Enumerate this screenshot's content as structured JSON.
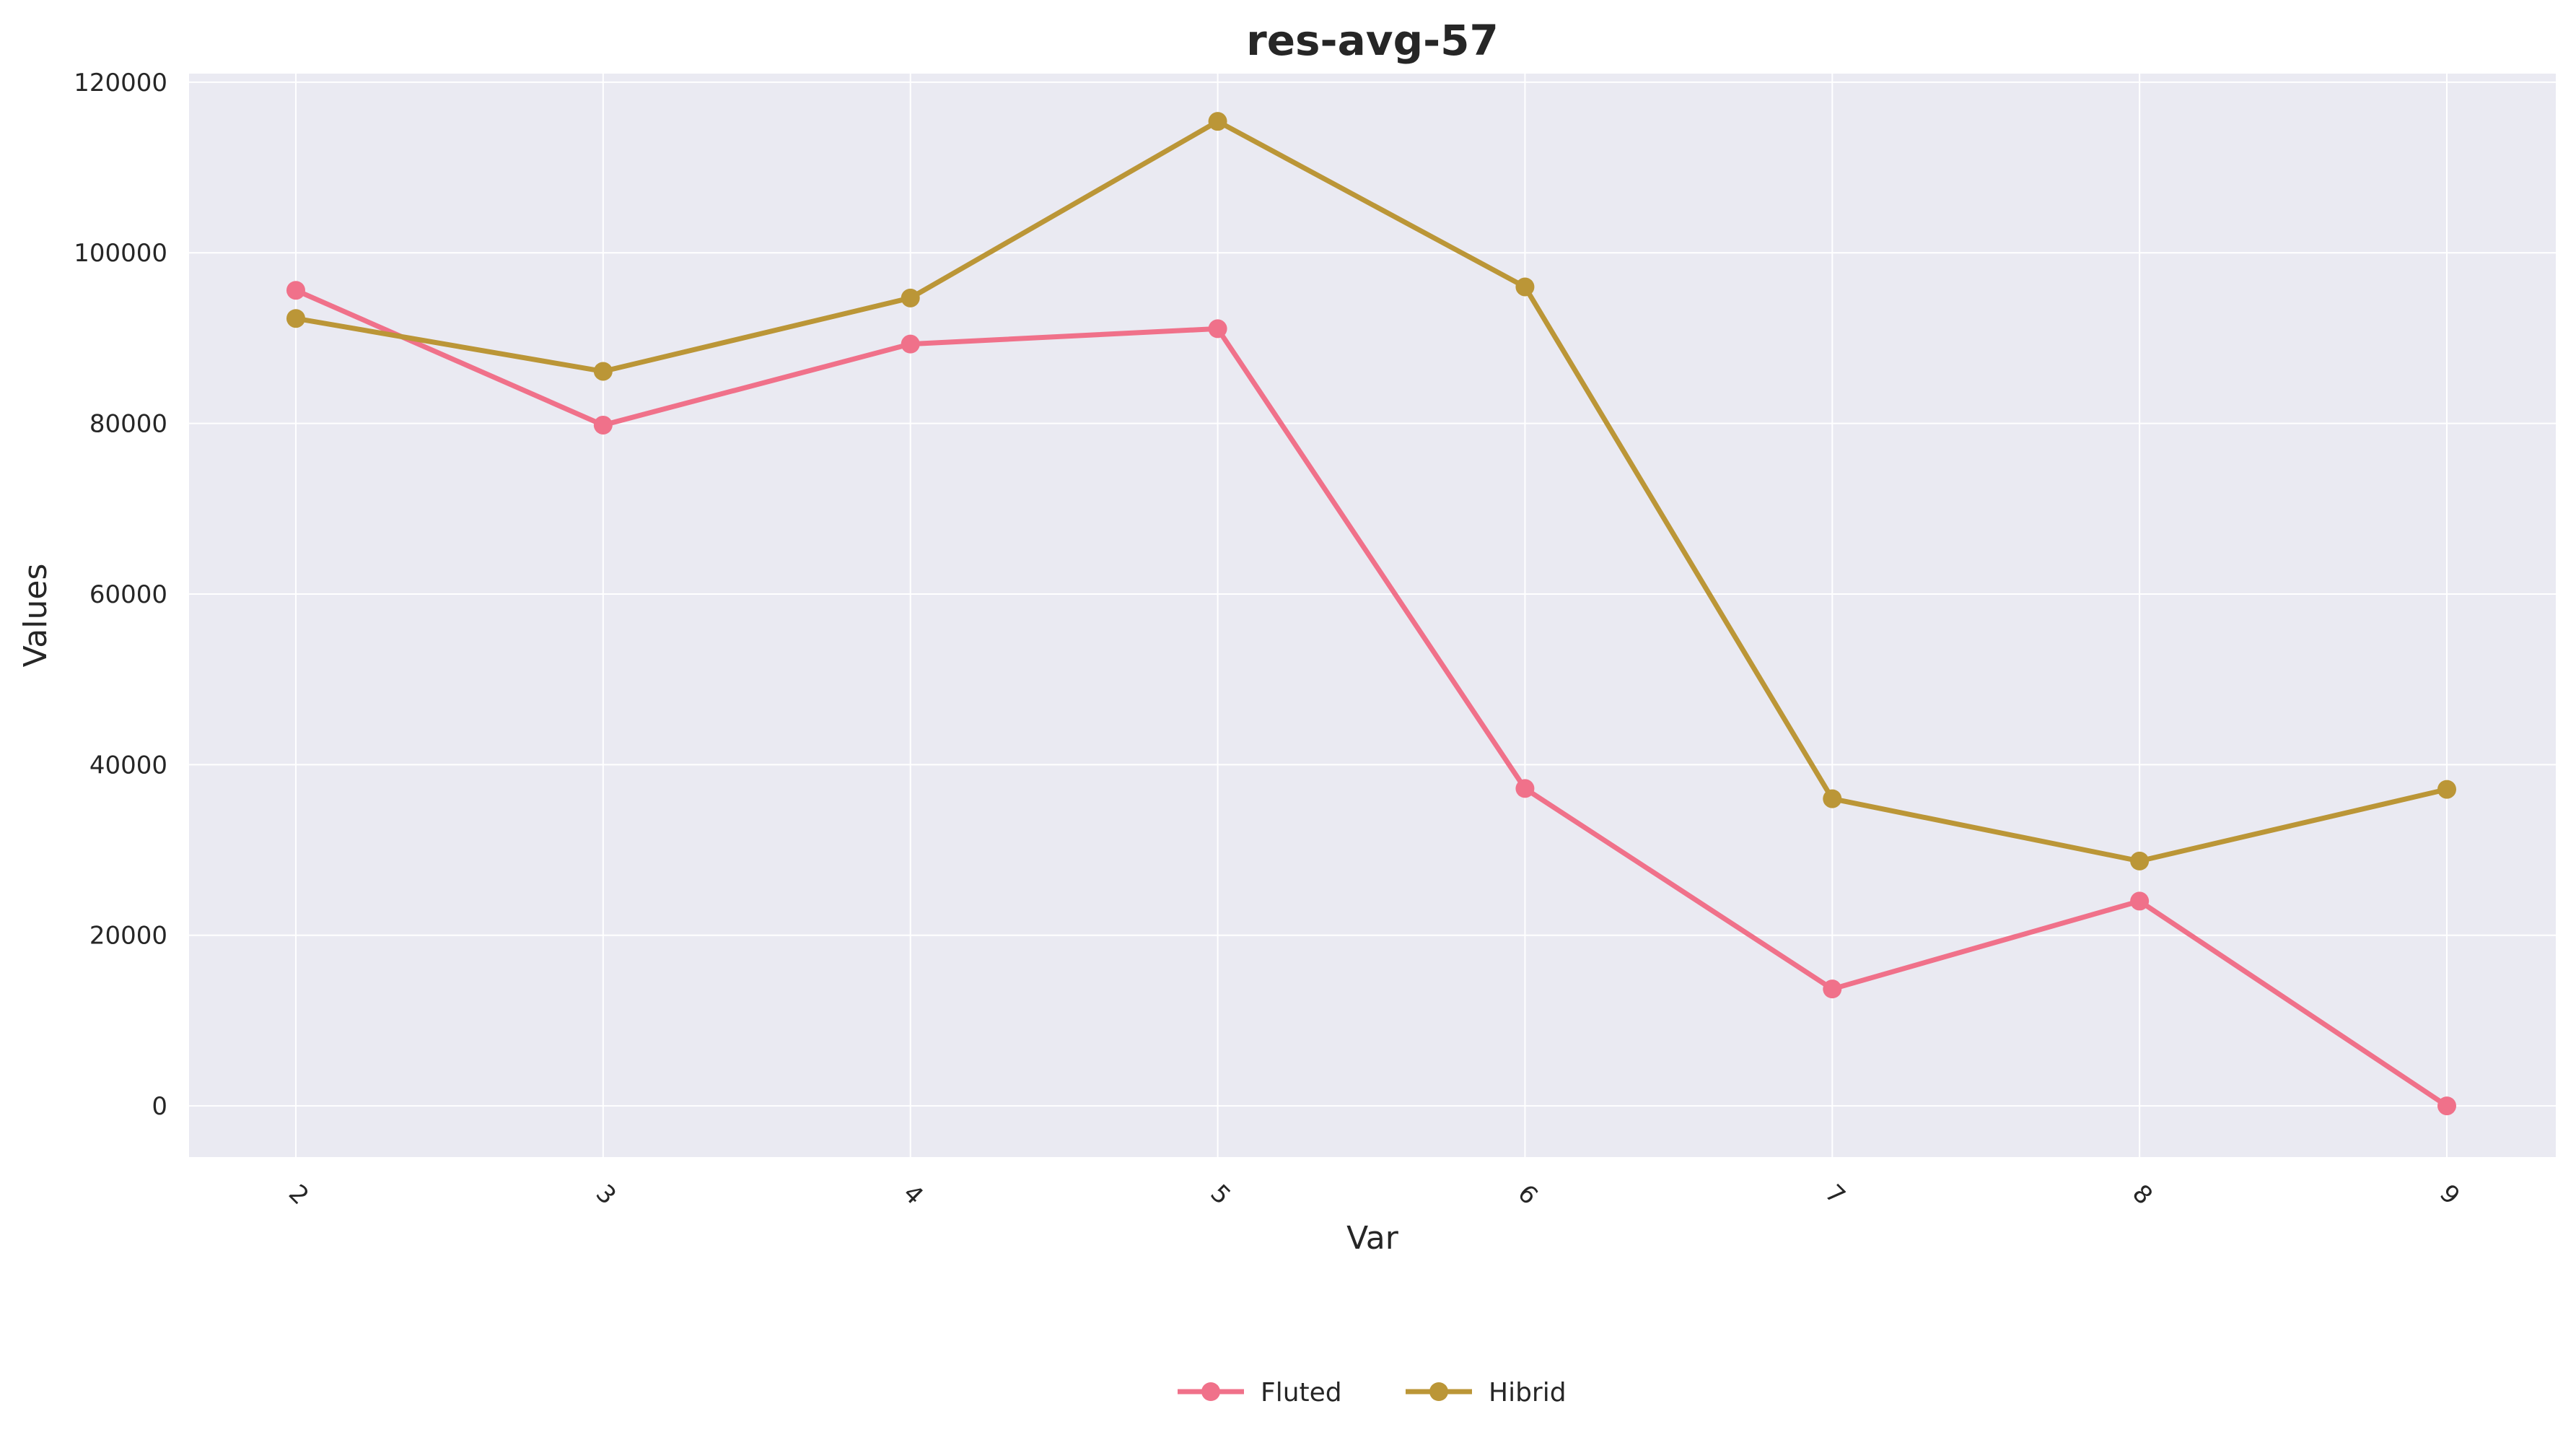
{
  "chart_data": {
    "type": "line",
    "title": "res-avg-57",
    "xlabel": "Var",
    "ylabel": "Values",
    "categories": [
      "2",
      "3",
      "4",
      "5",
      "6",
      "7",
      "8",
      "9"
    ],
    "ylim": [
      -6000,
      121000
    ],
    "yticks": [
      0,
      20000,
      40000,
      60000,
      80000,
      100000,
      120000
    ],
    "ytick_labels": [
      "0",
      "20000",
      "40000",
      "60000",
      "80000",
      "100000",
      "120000"
    ],
    "grid": true,
    "legend_position": "bottom-center",
    "series": [
      {
        "name": "Fluted",
        "color": "#f0718a",
        "values": [
          95600,
          79800,
          89300,
          91100,
          37200,
          13700,
          24000,
          0
        ]
      },
      {
        "name": "Hibrid",
        "color": "#bb9637",
        "values": [
          92300,
          86100,
          94700,
          115400,
          96000,
          36000,
          28700,
          37100
        ]
      }
    ]
  }
}
